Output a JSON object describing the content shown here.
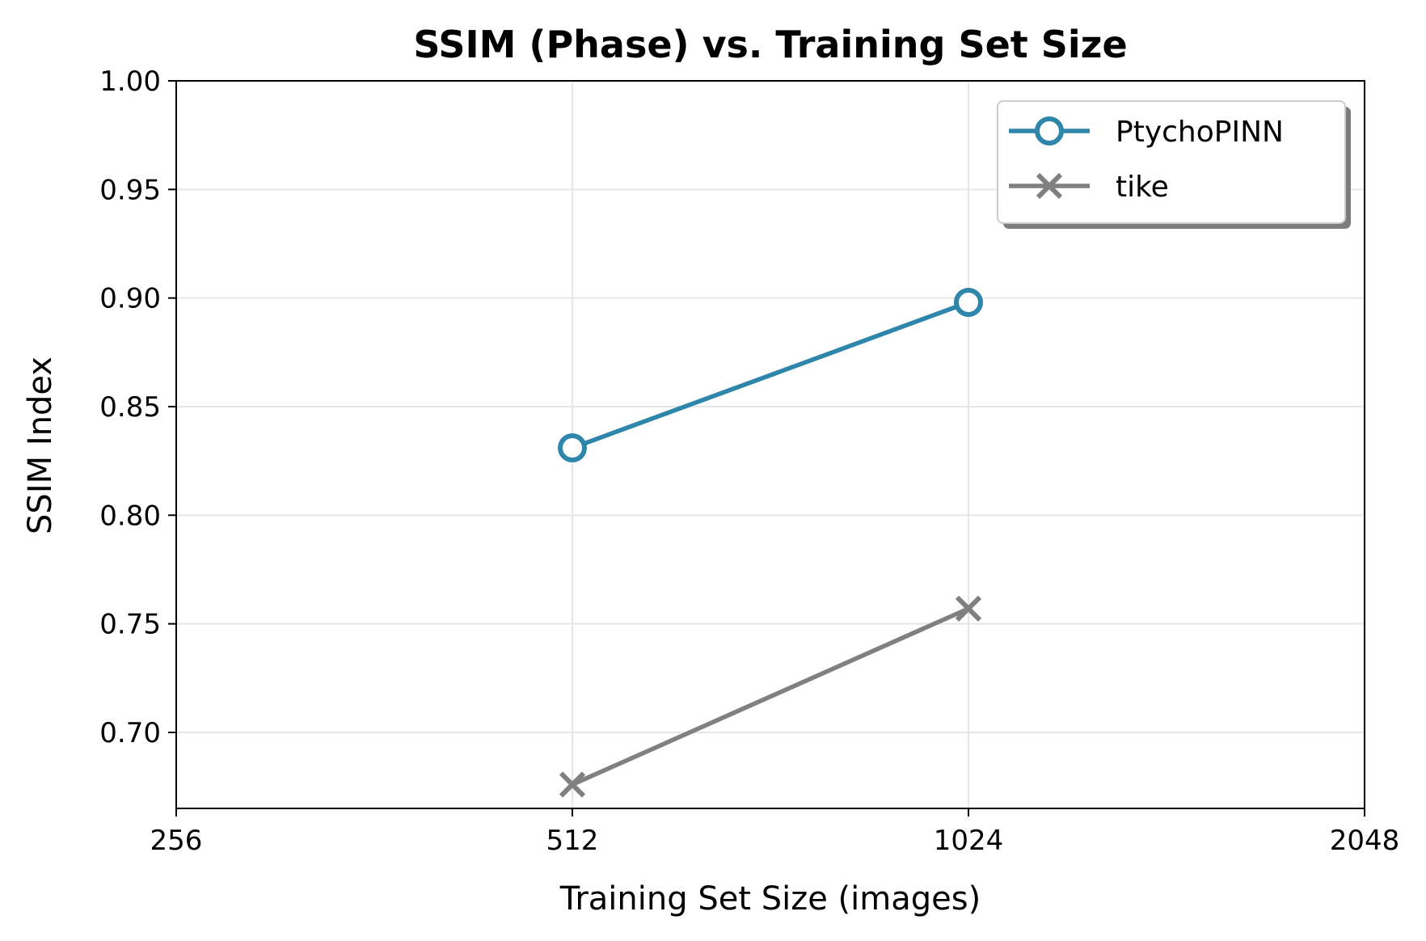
{
  "chart_data": {
    "type": "line",
    "title": "SSIM (Phase) vs. Training Set Size",
    "xlabel": "Training Set Size (images)",
    "ylabel": "SSIM Index",
    "x_scale": "log2",
    "x_ticks": [
      256,
      512,
      1024,
      2048
    ],
    "x_tick_labels": [
      "256",
      "512",
      "1024",
      "2048"
    ],
    "xlim": [
      256,
      2048
    ],
    "y_ticks": [
      0.7,
      0.75,
      0.8,
      0.85,
      0.9,
      0.95,
      1.0
    ],
    "y_tick_labels": [
      "0.70",
      "0.75",
      "0.80",
      "0.85",
      "0.90",
      "0.95",
      "1.00"
    ],
    "ylim": [
      0.665,
      1.0
    ],
    "grid": true,
    "legend_position": "top-right",
    "series": [
      {
        "name": "PtychoPINN",
        "x": [
          512,
          1024
        ],
        "values": [
          0.831,
          0.898
        ],
        "color": "#2E86AB",
        "marker": "circle"
      },
      {
        "name": "tike",
        "x": [
          512,
          1024
        ],
        "values": [
          0.676,
          0.757
        ],
        "color": "#808080",
        "marker": "x"
      }
    ]
  }
}
